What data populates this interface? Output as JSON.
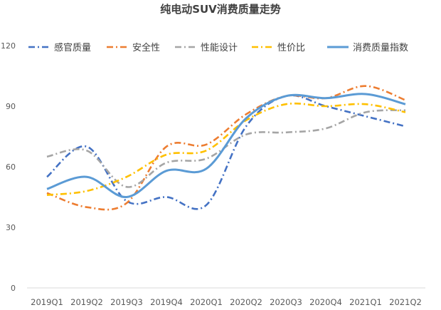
{
  "chart_data": {
    "type": "line",
    "title": "纯电动SUV消费质量走势",
    "xlabel": "",
    "ylabel": "",
    "categories": [
      "2019Q1",
      "2019Q2",
      "2019Q3",
      "2019Q4",
      "2020Q1",
      "2020Q2",
      "2020Q3",
      "2020Q4",
      "2021Q1",
      "2021Q2"
    ],
    "ylim": [
      0,
      120
    ],
    "yticks": [
      0,
      30,
      60,
      90,
      120
    ],
    "grid": false,
    "legend_position": "top",
    "series": [
      {
        "name": "感官质量",
        "color": "#4472C4",
        "dash": "dash-dot",
        "values": [
          55,
          70,
          43,
          45,
          41,
          80,
          95,
          90,
          85,
          80
        ]
      },
      {
        "name": "安全性",
        "color": "#ED7D31",
        "dash": "dash-dot",
        "values": [
          47,
          40,
          42,
          70,
          71,
          86,
          95,
          94,
          100,
          93
        ]
      },
      {
        "name": "性能设计",
        "color": "#A5A5A5",
        "dash": "dash-dot",
        "values": [
          65,
          68,
          50,
          62,
          64,
          76,
          77,
          79,
          87,
          88
        ]
      },
      {
        "name": "性价比",
        "color": "#FFC000",
        "dash": "dash-dot",
        "values": [
          46,
          48,
          55,
          66,
          68,
          83,
          91,
          90,
          91,
          87
        ]
      },
      {
        "name": "消费质量指数",
        "color": "#5B9BD5",
        "dash": "solid",
        "values": [
          49,
          55,
          45,
          58,
          59,
          84,
          95,
          94,
          96,
          91
        ]
      }
    ]
  }
}
